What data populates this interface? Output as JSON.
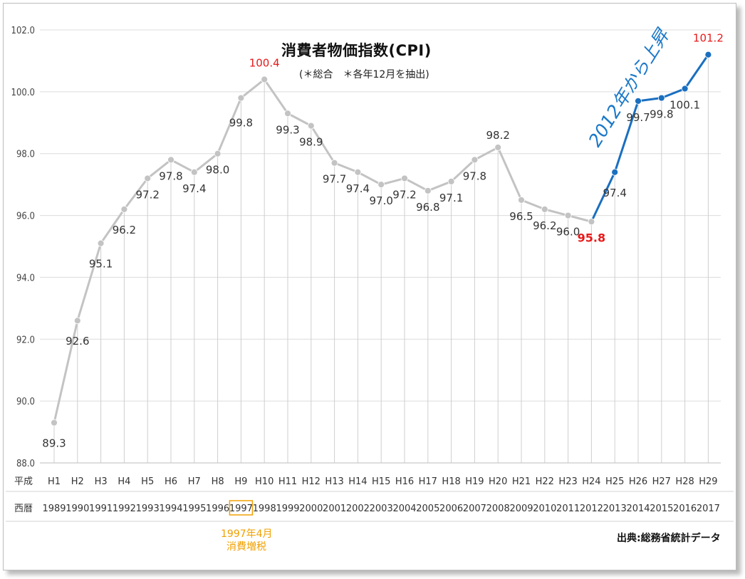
{
  "title": "消費者物価指数(CPI)",
  "subtitle": "(＊総合　＊各年12月を抽出)",
  "source": "出典:総務省統計データ",
  "note_line1": "1997年4月",
  "note_line2": "消費増税",
  "annotation": "2012年から上昇",
  "row_label_heisei": "平成",
  "row_label_seireki": "西暦",
  "colors": {
    "gray_line": "#c3c3c3",
    "blue_line": "#1a6fc0",
    "red_label": "#e8191a",
    "orange": "#f0a000"
  },
  "chart_data": {
    "type": "line",
    "title": "消費者物価指数(CPI)",
    "ylim": [
      88.0,
      102.0
    ],
    "yticks": [
      "88.0",
      "90.0",
      "92.0",
      "94.0",
      "96.0",
      "98.0",
      "100.0",
      "102.0"
    ],
    "grid": true,
    "heisei": [
      "H1",
      "H2",
      "H3",
      "H4",
      "H5",
      "H6",
      "H7",
      "H8",
      "H9",
      "H10",
      "H11",
      "H12",
      "H13",
      "H14",
      "H15",
      "H16",
      "H17",
      "H18",
      "H19",
      "H20",
      "H21",
      "H22",
      "H23",
      "H24",
      "H25",
      "H26",
      "H27",
      "H28",
      "H29"
    ],
    "years": [
      "1989",
      "1990",
      "1991",
      "1992",
      "1993",
      "1994",
      "1995",
      "1996",
      "1997",
      "1998",
      "1999",
      "2000",
      "2001",
      "2002",
      "2003",
      "2004",
      "2005",
      "2006",
      "2007",
      "2008",
      "2009",
      "2010",
      "2011",
      "2012",
      "2013",
      "2014",
      "2015",
      "2016",
      "2017"
    ],
    "values": [
      89.3,
      92.6,
      95.1,
      96.2,
      97.2,
      97.8,
      97.4,
      98.0,
      99.8,
      100.4,
      99.3,
      98.9,
      97.7,
      97.4,
      97.0,
      97.2,
      96.8,
      97.1,
      97.8,
      98.2,
      96.5,
      96.2,
      96.0,
      95.8,
      97.4,
      99.7,
      99.8,
      100.1,
      101.2
    ],
    "labels": [
      "89.3",
      "92.6",
      "95.1",
      "96.2",
      "97.2",
      "97.8",
      "97.4",
      "98.0",
      "99.8",
      "100.4",
      "99.3",
      "98.9",
      "97.7",
      "97.4",
      "97.0",
      "97.2",
      "96.8",
      "97.1",
      "97.8",
      "98.2",
      "96.5",
      "96.2",
      "96.0",
      "95.8",
      "97.4",
      "99.7",
      "99.8",
      "100.1",
      "101.2"
    ],
    "series_split_index": 23,
    "highlight_year": "1997"
  }
}
